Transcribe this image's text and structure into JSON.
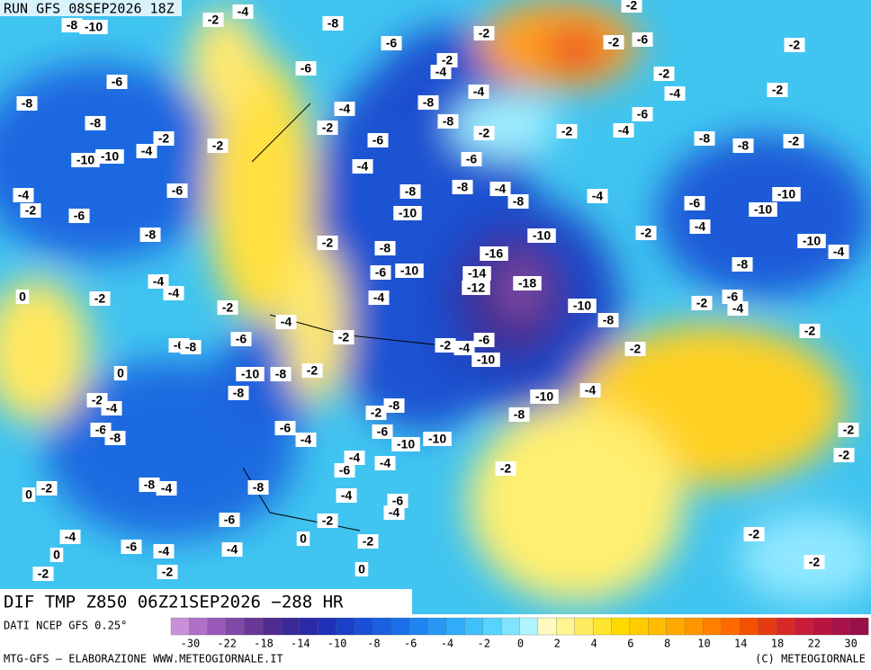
{
  "header": {
    "run": "RUN GFS 08SEP2026 18Z"
  },
  "map": {
    "contour_labels": [
      -8,
      -10,
      -2,
      -4,
      -8,
      -6,
      -2,
      -2,
      -2,
      -6,
      -2,
      -6,
      -6,
      -2,
      -4,
      -2,
      -4,
      -2,
      -8,
      -8,
      -4,
      -2,
      -8,
      -8,
      -4,
      -6,
      -4,
      -2,
      -2,
      -6,
      -8,
      -8,
      -2,
      -2,
      -4,
      -2,
      -10,
      -10,
      -4,
      -6,
      -6,
      -4,
      -2,
      -6,
      -8,
      -8,
      -4,
      -8,
      -4,
      -6,
      -10,
      -10,
      -10,
      -8,
      -2,
      -8,
      -16,
      -10,
      -2,
      -4,
      -10,
      -4,
      -8,
      -6,
      -10,
      -14,
      -12,
      -18,
      -4,
      -4,
      0,
      -2,
      -2,
      -4,
      -10,
      -6,
      -2,
      -4,
      -8,
      -4,
      -2,
      -2,
      -4,
      -6,
      -2,
      -6,
      -8,
      -6,
      -10,
      -2,
      0,
      -10,
      -8,
      -2,
      -8,
      -4,
      -10,
      -2,
      -4,
      -8,
      -2,
      -8,
      -6,
      -8,
      -6,
      -4,
      -6,
      -10,
      -10,
      -2,
      -2,
      -4,
      -4,
      -6,
      -2,
      -8,
      -4,
      0,
      -2,
      -8,
      -4,
      -6,
      -4,
      -6,
      -2,
      -4,
      0,
      -2,
      -2,
      -6,
      -4,
      -4,
      0,
      -2,
      -2,
      -2,
      0
    ]
  },
  "footer": {
    "title": "DIF TMP Z850 06Z21SEP2026 −288 HR",
    "source": "DATI NCEP GFS 0.25°",
    "credit": "MTG-GFS — ELABORAZIONE WWW.METEOGIORNALE.IT",
    "copyright": "(C) METEOGIORNALE"
  },
  "colorbar": {
    "colors": [
      "#c890d8",
      "#b070c8",
      "#9858b8",
      "#8048a8",
      "#683898",
      "#502c90",
      "#3a2a98",
      "#2a2aa8",
      "#2030b8",
      "#1a40c8",
      "#1a50d8",
      "#1a60e0",
      "#1a70e8",
      "#2084f0",
      "#2898f4",
      "#30acf8",
      "#40c0fa",
      "#58d4fc",
      "#80e4fe",
      "#b0f4ff",
      "#fffbc0",
      "#fff590",
      "#ffec60",
      "#ffe430",
      "#ffda00",
      "#ffcc00",
      "#ffbc00",
      "#ffaa00",
      "#ff9600",
      "#ff8000",
      "#ff6a00",
      "#f55000",
      "#e83a10",
      "#d82828",
      "#c81c38",
      "#b81440",
      "#a81048",
      "#981048"
    ],
    "ticks": [
      -30,
      -22,
      -18,
      -14,
      -10,
      -8,
      -6,
      -4,
      -2,
      0,
      2,
      4,
      6,
      8,
      10,
      14,
      18,
      22,
      30
    ]
  }
}
